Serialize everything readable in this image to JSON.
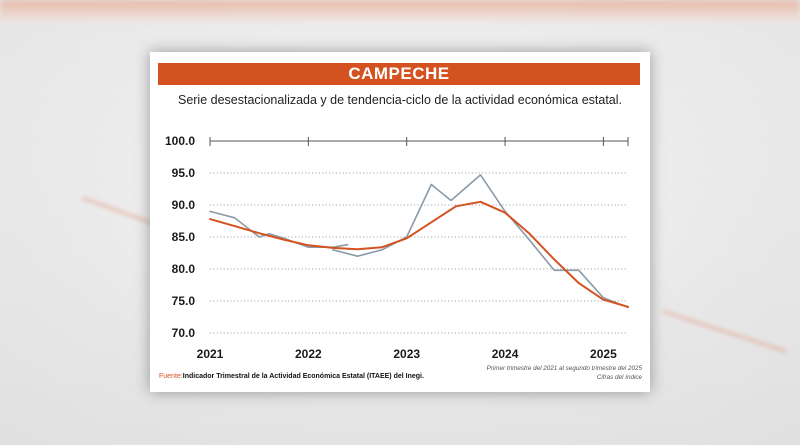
{
  "chart_data": {
    "type": "line",
    "title": "CAMPECHE",
    "subtitle": "Serie desestacionalizada y de tendencia-ciclo de la actividad económica estatal.",
    "x_tick_labels": [
      "2021",
      "2022",
      "2023",
      "2024",
      "2025"
    ],
    "y_tick_labels": [
      "100.0",
      "95.0",
      "90.0",
      "85.0",
      "80.0",
      "75.0",
      "70.0"
    ],
    "ylim": [
      70,
      100
    ],
    "xlim": [
      2021.0,
      2025.25
    ],
    "grid": "horizontal dotted",
    "series": [
      {
        "color": "#8a9aa8",
        "x": [
          2021.0,
          2021.25,
          2021.5,
          2021.6,
          2021.75,
          2022.0,
          2022.25,
          2022.4
        ],
        "y": [
          89.0,
          88.0,
          85.0,
          85.5,
          84.8,
          83.4,
          83.4,
          83.8
        ]
      },
      {
        "color": "#8a9aa8",
        "x": [
          2022.25,
          2022.5,
          2022.75,
          2023.0,
          2023.25,
          2023.45,
          2023.75,
          2024.0,
          2024.25,
          2024.5,
          2024.75,
          2025.0,
          2025.25
        ],
        "y": [
          83.0,
          82.0,
          83.0,
          85.0,
          93.2,
          90.7,
          94.7,
          89.0,
          84.5,
          79.8,
          79.8,
          75.5,
          74.0
        ]
      },
      {
        "color": "#d4521f",
        "x": [
          2021.0,
          2021.25,
          2021.5,
          2021.75,
          2022.0,
          2022.25,
          2022.5,
          2022.75,
          2023.0,
          2023.25,
          2023.5,
          2023.75,
          2024.0,
          2024.25,
          2024.5,
          2024.75,
          2025.0,
          2025.25
        ],
        "y": [
          87.8,
          86.7,
          85.6,
          84.6,
          83.7,
          83.3,
          83.1,
          83.4,
          84.8,
          87.3,
          89.8,
          90.5,
          88.8,
          85.5,
          81.5,
          77.8,
          75.2,
          74.1
        ]
      }
    ]
  },
  "footer": {
    "source_prefix": "Fuente:",
    "source_text": "Indicador Trimestral de la Actividad Económica Estatal (ITAEE) del Inegi.",
    "note_line1": "Primer trimestre del 2021 al segundo trimestre del 2025",
    "note_line2": "Cifras del índice"
  },
  "colors": {
    "accent": "#d4521f",
    "observed_line": "#8a9aa8",
    "trend_line": "#d4521f"
  }
}
